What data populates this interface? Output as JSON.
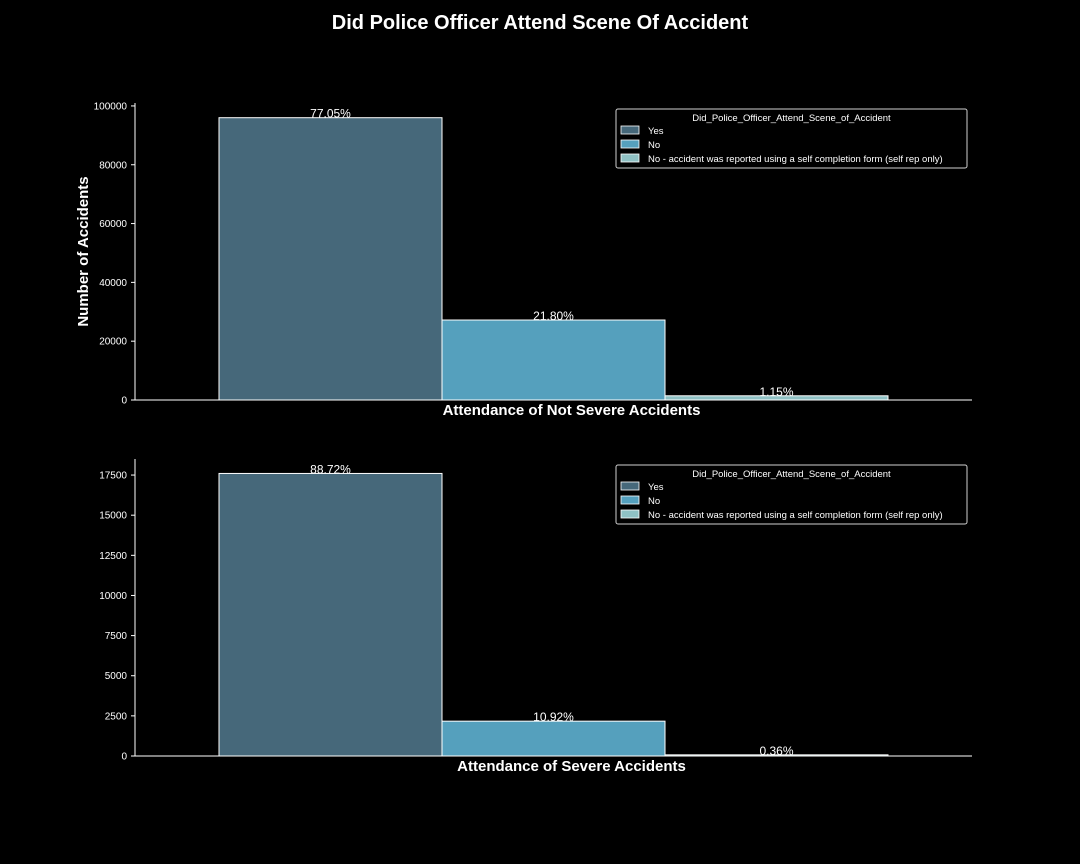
{
  "figure": {
    "title": "Did Police Officer Attend Scene Of Accident",
    "background": "#000000",
    "text_color": "#ffffff"
  },
  "colors": [
    "#46687a",
    "#55a0bd",
    "#8fc1c4"
  ],
  "chart_data": [
    {
      "type": "bar",
      "xlabel": "Attendance of Not Severe Accidents",
      "ylabel": "Number of Accidents",
      "ylim": [
        0,
        101000
      ],
      "yticks": [
        0,
        20000,
        40000,
        60000,
        80000,
        100000
      ],
      "legend": {
        "title": "Did_Police_Officer_Attend_Scene_of_Accident",
        "placement": "top-right"
      },
      "series": [
        {
          "name": "Yes",
          "value": 96000,
          "label": "77.05%"
        },
        {
          "name": "No",
          "value": 27200,
          "label": "21.80%"
        },
        {
          "name": "No - accident was reported using a self completion  form (self rep only)",
          "value": 1430,
          "label": "1.15%"
        }
      ]
    },
    {
      "type": "bar",
      "xlabel": "Attendance of Severe Accidents",
      "ylabel": "",
      "ylim": [
        0,
        18500
      ],
      "yticks": [
        0,
        2500,
        5000,
        7500,
        10000,
        12500,
        15000,
        17500
      ],
      "legend": {
        "title": "Did_Police_Officer_Attend_Scene_of_Accident",
        "placement": "top-right"
      },
      "series": [
        {
          "name": "Yes",
          "value": 17600,
          "label": "88.72%"
        },
        {
          "name": "No",
          "value": 2170,
          "label": "10.92%"
        },
        {
          "name": "No - accident was reported using a self completion  form (self rep only)",
          "value": 72,
          "label": "0.36%"
        }
      ]
    }
  ]
}
